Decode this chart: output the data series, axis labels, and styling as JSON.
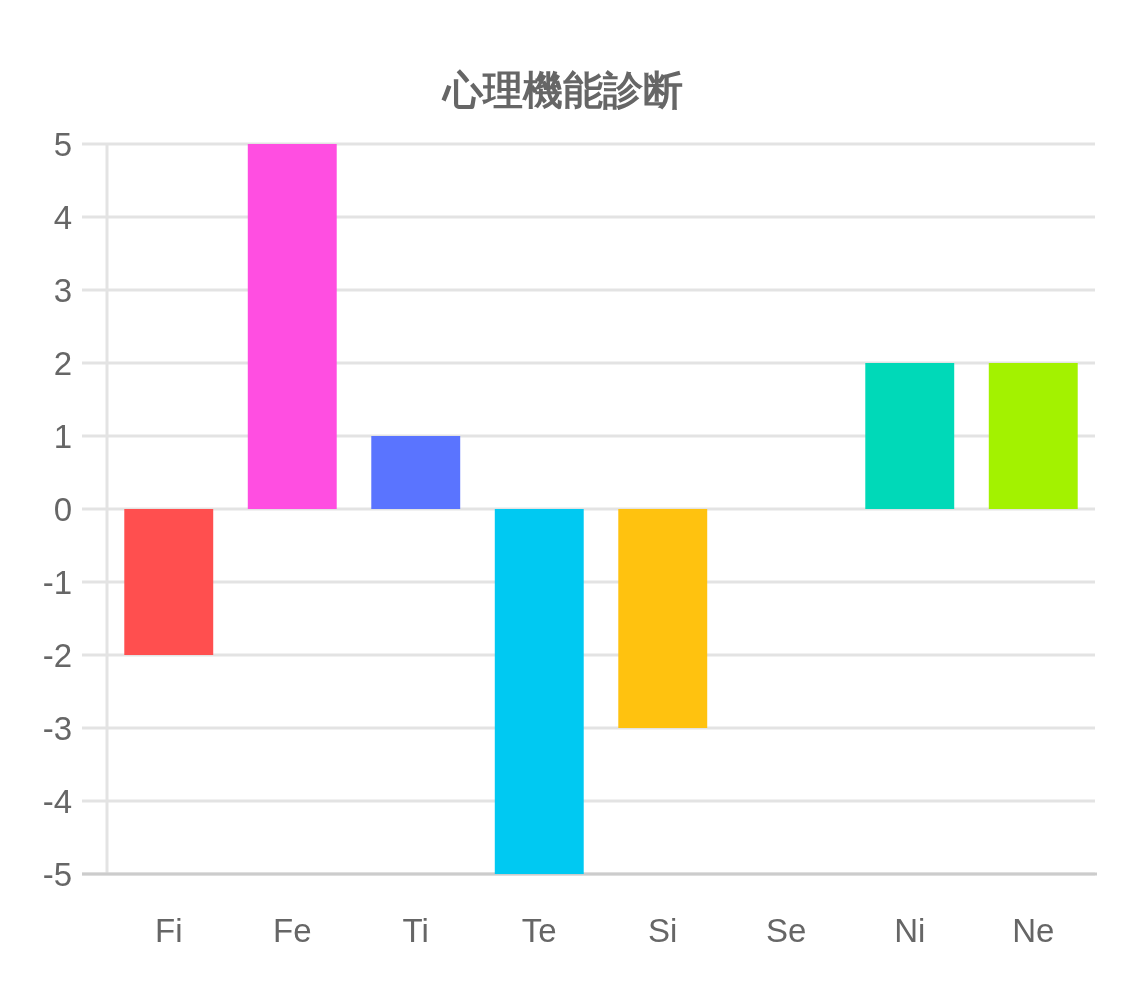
{
  "chart_data": {
    "type": "bar",
    "title": "心理機能診断",
    "categories": [
      "Fi",
      "Fe",
      "Ti",
      "Te",
      "Si",
      "Se",
      "Ni",
      "Ne"
    ],
    "values": [
      -2,
      5,
      1,
      -5,
      -3,
      0,
      2,
      2
    ],
    "colors": [
      "#ff4f4f",
      "#ff4ee1",
      "#5a74ff",
      "#00c9f2",
      "#ffc20f",
      null,
      "#00d9b8",
      "#a3f200"
    ],
    "ylim": [
      -5,
      5
    ],
    "yticks": [
      -5,
      -4,
      -3,
      -2,
      -1,
      0,
      1,
      2,
      3,
      4,
      5
    ],
    "grid": "y"
  }
}
